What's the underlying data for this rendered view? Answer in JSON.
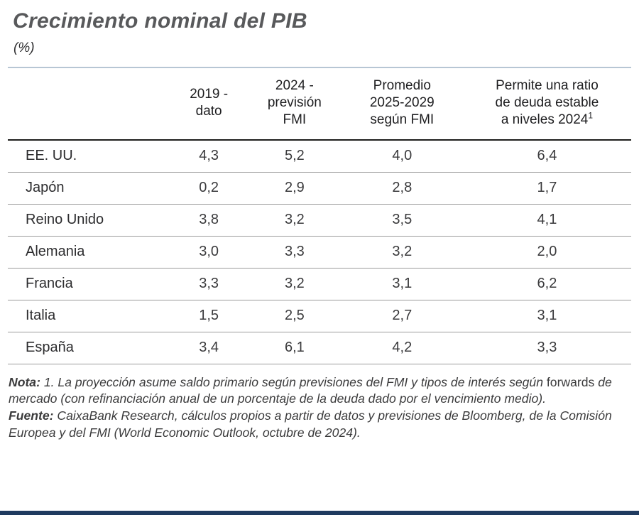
{
  "title": "Crecimiento nominal del PIB",
  "subtitle": "(%)",
  "colors": {
    "title_color": "#58595b",
    "table_top_line": "#b7c6d4",
    "header_rule": "#1d1d1b",
    "row_rule": "#9b9b9b",
    "bottom_bar": "#1f3a5f"
  },
  "table": {
    "headers": [
      {
        "lines": [
          "2019 -",
          "dato"
        ],
        "sup": ""
      },
      {
        "lines": [
          "2024 -",
          "previsión",
          "FMI"
        ],
        "sup": ""
      },
      {
        "lines": [
          "Promedio",
          "2025-2029",
          "según FMI"
        ],
        "sup": ""
      },
      {
        "lines": [
          "Permite una ratio",
          "de deuda estable",
          "a niveles 2024"
        ],
        "sup": "1"
      }
    ],
    "rows": [
      {
        "label": "EE. UU.",
        "values": [
          "4,3",
          "5,2",
          "4,0",
          "6,4"
        ]
      },
      {
        "label": "Japón",
        "values": [
          "0,2",
          "2,9",
          "2,8",
          "1,7"
        ]
      },
      {
        "label": "Reino Unido",
        "values": [
          "3,8",
          "3,2",
          "3,5",
          "4,1"
        ]
      },
      {
        "label": "Alemania",
        "values": [
          "3,0",
          "3,3",
          "3,2",
          "2,0"
        ]
      },
      {
        "label": "Francia",
        "values": [
          "3,3",
          "3,2",
          "3,1",
          "6,2"
        ]
      },
      {
        "label": "Italia",
        "values": [
          "1,5",
          "2,5",
          "2,7",
          "3,1"
        ]
      },
      {
        "label": "España",
        "values": [
          "3,4",
          "6,1",
          "4,2",
          "3,3"
        ]
      }
    ]
  },
  "notes": {
    "nota_label": "Nota:",
    "nota_before_forwards": "1. La proyección asume saldo primario según previsiones del FMI y tipos de interés según",
    "nota_forwards_word": "forwards",
    "nota_after_forwards": "de mercado (con refinanciación anual de un porcentaje de la deuda dado por el vencimiento medio).",
    "fuente_label": "Fuente:",
    "fuente_text": "CaixaBank Research, cálculos propios a partir de datos y previsiones de Bloomberg, de la Comisión Europea y del FMI (World Economic Outlook, octubre de 2024)."
  },
  "chart_data": {
    "type": "table",
    "title": "Crecimiento nominal del PIB",
    "subtitle_units": "(%)",
    "columns": [
      "2019 - dato",
      "2024 - previsión FMI",
      "Promedio 2025-2029 según FMI",
      "Permite una ratio de deuda estable a niveles 2024 (1)"
    ],
    "rows": [
      {
        "country": "EE. UU.",
        "values": [
          4.3,
          5.2,
          4.0,
          6.4
        ]
      },
      {
        "country": "Japón",
        "values": [
          0.2,
          2.9,
          2.8,
          1.7
        ]
      },
      {
        "country": "Reino Unido",
        "values": [
          3.8,
          3.2,
          3.5,
          4.1
        ]
      },
      {
        "country": "Alemania",
        "values": [
          3.0,
          3.3,
          3.2,
          2.0
        ]
      },
      {
        "country": "Francia",
        "values": [
          3.3,
          3.2,
          3.1,
          6.2
        ]
      },
      {
        "country": "Italia",
        "values": [
          1.5,
          2.5,
          2.7,
          3.1
        ]
      },
      {
        "country": "España",
        "values": [
          3.4,
          6.1,
          4.2,
          3.3
        ]
      }
    ],
    "decimal_separator": ","
  }
}
